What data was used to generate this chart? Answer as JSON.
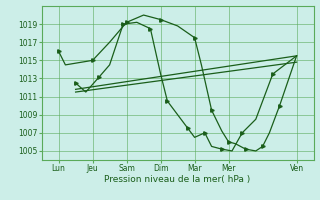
{
  "background_color": "#cceee8",
  "grid_color": "#5aaa5a",
  "line_color": "#1a5e1a",
  "xlabel": "Pression niveau de la mer( hPa )",
  "ylim": [
    1004,
    1021
  ],
  "yticks": [
    1005,
    1007,
    1009,
    1011,
    1013,
    1015,
    1017,
    1019
  ],
  "x_labels": [
    "Lun",
    "Jeu",
    "Sam",
    "Dim",
    "Mar",
    "Mer",
    "Ven"
  ],
  "x_tick_pos": [
    0,
    1,
    2,
    3,
    4,
    5,
    7
  ],
  "line1_x": [
    0.0,
    0.2,
    1.0,
    1.5,
    2.0,
    2.5,
    3.0,
    3.5,
    4.0,
    4.2,
    4.5,
    4.8,
    5.0,
    5.2,
    5.5,
    5.8,
    6.0,
    6.2,
    6.5,
    7.0
  ],
  "line1_y": [
    1016.0,
    1014.5,
    1015.0,
    1017.0,
    1019.2,
    1020.0,
    1019.5,
    1018.8,
    1017.5,
    1014.5,
    1009.5,
    1007.2,
    1006.0,
    1005.8,
    1005.2,
    1005.0,
    1005.5,
    1007.0,
    1010.0,
    1015.5
  ],
  "line2_x": [
    0.5,
    0.8,
    1.2,
    1.5,
    1.9,
    2.3,
    2.7,
    3.0,
    3.2,
    3.5,
    3.8,
    4.0,
    4.3,
    4.5,
    4.8,
    5.1,
    5.4,
    5.8,
    6.3,
    7.0
  ],
  "line2_y": [
    1012.5,
    1011.5,
    1013.2,
    1014.5,
    1019.0,
    1019.2,
    1018.5,
    1013.5,
    1010.5,
    1009.0,
    1007.5,
    1006.5,
    1007.0,
    1005.5,
    1005.2,
    1005.0,
    1007.0,
    1008.5,
    1013.5,
    1015.5
  ],
  "line3_x": [
    0.5,
    7.0
  ],
  "line3_y": [
    1011.8,
    1015.5
  ],
  "line4_x": [
    0.5,
    7.0
  ],
  "line4_y": [
    1011.5,
    1014.8
  ]
}
